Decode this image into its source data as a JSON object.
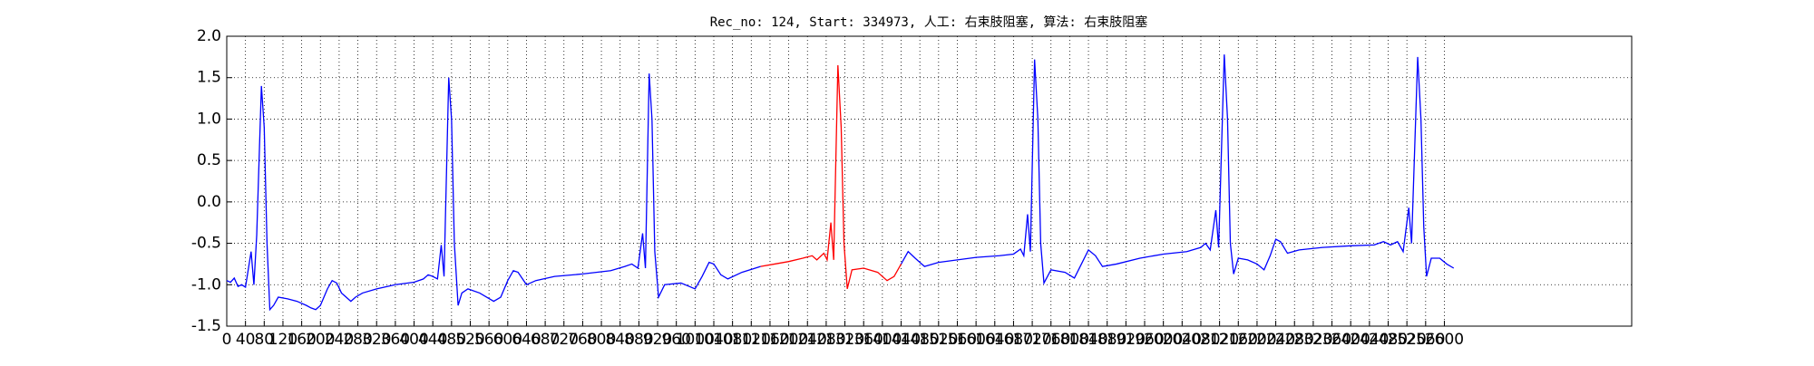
{
  "chart_data": {
    "type": "line",
    "title": "Rec_no: 124, Start: 334973, 人工: 右束肢阻塞, 算法: 右束肢阻塞",
    "xlim": [
      0,
      3000
    ],
    "xticks": [
      0,
      40,
      80,
      120,
      160,
      200,
      240,
      280,
      320,
      360,
      400,
      440,
      480,
      520,
      560,
      600,
      640,
      680,
      720,
      760,
      800,
      840,
      880,
      920,
      960,
      1000,
      1040,
      1080,
      1120,
      1160,
      1200,
      1240,
      1280,
      1320,
      1360,
      1400,
      1440,
      1480,
      1520,
      1560,
      1600,
      1640,
      1680,
      1720,
      1760,
      1800,
      1840,
      1880,
      1920,
      1960,
      2000,
      2040,
      2080,
      2120,
      2160,
      2200,
      2240,
      2280,
      2320,
      2360,
      2400,
      2440,
      2480,
      2520,
      2560,
      2600
    ],
    "ylim": [
      -1.5,
      2
    ],
    "yticks": [
      -1.5,
      {
        "value": -1,
        "label": "-1.0"
      },
      -0.5,
      {
        "value": 0,
        "label": "0.0"
      },
      0.5,
      {
        "value": 1,
        "label": "1.0"
      },
      1.5,
      {
        "value": 2,
        "label": "2.0"
      }
    ],
    "grid": true,
    "series": [
      {
        "color": "#0000ff",
        "x": [
          0,
          8,
          16,
          24,
          32,
          40,
          52,
          58,
          64,
          74,
          80,
          86,
          92,
          100,
          110,
          130,
          150,
          170,
          180,
          190,
          200,
          215,
          225,
          235,
          245,
          255,
          265,
          275,
          290,
          320,
          360,
          400,
          420,
          430,
          440,
          450,
          458,
          464,
          474,
          480,
          486,
          494,
          502,
          515,
          540,
          570,
          585,
          600,
          612,
          622,
          640,
          660,
          700,
          760,
          820,
          850,
          865,
          878,
          888,
          894,
          902,
          908,
          914,
          922,
          935,
          970,
          1000,
          1015,
          1030,
          1040,
          1055,
          1070,
          1100,
          1140,
          1300,
          1440,
          1455,
          1470,
          1490,
          1520,
          1560,
          1600,
          1650,
          1680,
          1695,
          1702,
          1710,
          1716,
          1725,
          1732,
          1738,
          1745,
          1760,
          1790,
          1810,
          1825,
          1840,
          1855,
          1870,
          1900,
          1950,
          2000,
          2050,
          2080,
          2090,
          2100,
          2112,
          2118,
          2130,
          2137,
          2143,
          2150,
          2160,
          2180,
          2200,
          2215,
          2228,
          2240,
          2250,
          2265,
          2290,
          2340,
          2400,
          2450,
          2470,
          2485,
          2500,
          2512,
          2524,
          2530,
          2543,
          2550,
          2556,
          2562,
          2572,
          2590,
          2605,
          2620
        ],
        "values": [
          -0.95,
          -0.97,
          -0.92,
          -1.02,
          -1.0,
          -1.03,
          -0.6,
          -1.0,
          -0.4,
          1.4,
          0.9,
          -0.5,
          -1.3,
          -1.25,
          -1.15,
          -1.17,
          -1.2,
          -1.25,
          -1.28,
          -1.3,
          -1.25,
          -1.05,
          -0.95,
          -0.98,
          -1.1,
          -1.15,
          -1.2,
          -1.15,
          -1.1,
          -1.05,
          -1.0,
          -0.97,
          -0.93,
          -0.88,
          -0.9,
          -0.93,
          -0.52,
          -0.9,
          1.5,
          1.0,
          -0.5,
          -1.25,
          -1.1,
          -1.05,
          -1.1,
          -1.2,
          -1.15,
          -0.95,
          -0.83,
          -0.85,
          -1.0,
          -0.95,
          -0.9,
          -0.87,
          -0.83,
          -0.78,
          -0.75,
          -0.8,
          -0.38,
          -0.8,
          1.55,
          1.0,
          -0.6,
          -1.15,
          -1.0,
          -0.98,
          -1.05,
          -0.9,
          -0.73,
          -0.75,
          -0.88,
          -0.93,
          -0.85,
          -0.78,
          null,
          -0.75,
          -0.6,
          -0.68,
          -0.78,
          -0.73,
          -0.7,
          -0.67,
          -0.65,
          -0.63,
          -0.57,
          -0.65,
          -0.15,
          -0.6,
          1.72,
          1.0,
          -0.5,
          -0.98,
          -0.82,
          -0.85,
          -0.92,
          -0.75,
          -0.58,
          -0.65,
          -0.78,
          -0.75,
          -0.68,
          -0.63,
          -0.6,
          -0.55,
          -0.5,
          -0.58,
          -0.1,
          -0.55,
          1.78,
          1.0,
          -0.5,
          -0.87,
          -0.68,
          -0.7,
          -0.75,
          -0.82,
          -0.65,
          -0.45,
          -0.48,
          -0.62,
          -0.58,
          -0.55,
          -0.53,
          -0.52,
          -0.48,
          -0.52,
          -0.48,
          -0.6,
          -0.07,
          -0.5,
          1.75,
          1.0,
          -0.3,
          -0.9,
          -0.68,
          -0.68,
          -0.75,
          -0.8
        ]
      },
      {
        "color": "#ff0000",
        "x": [
          1140,
          1170,
          1200,
          1230,
          1250,
          1260,
          1275,
          1282,
          1290,
          1296,
          1305,
          1312,
          1318,
          1325,
          1335,
          1360,
          1390,
          1410,
          1425,
          1440
        ],
        "values": [
          -0.78,
          -0.75,
          -0.72,
          -0.68,
          -0.65,
          -0.7,
          -0.62,
          -0.7,
          -0.25,
          -0.7,
          1.65,
          0.9,
          -0.5,
          -1.05,
          -0.82,
          -0.8,
          -0.85,
          -0.95,
          -0.9,
          -0.75
        ]
      }
    ]
  }
}
